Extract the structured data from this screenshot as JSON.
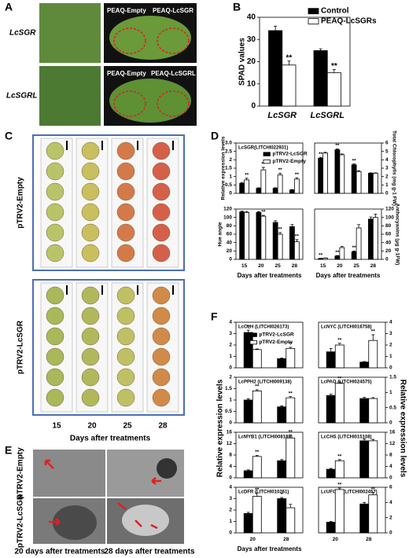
{
  "panel_labels": [
    "A",
    "B",
    "C",
    "D",
    "E",
    "F"
  ],
  "panel_A": {
    "rows": [
      "LcSGR",
      "LcSGRL"
    ],
    "leaf_labels": [
      [
        "PEAQ-Empty",
        "PEAQ-LcSGR"
      ],
      [
        "PEAQ-Empty",
        "PEAQ-LcSGRL"
      ]
    ]
  },
  "panel_C": {
    "groups": [
      "pTRV2-Empty",
      "pTRV2-LcSGR"
    ],
    "days": [
      "15",
      "20",
      "25",
      "28"
    ],
    "xlabel": "Days after treatments"
  },
  "panel_E": {
    "groups": [
      "pTRV2-Empty",
      "pTRV2-LcSGR"
    ],
    "columns": [
      "20 days after treatments",
      "28 days after treatments"
    ]
  },
  "panel_F": {
    "ylabel_left": "Relative expression levels",
    "ylabel_right": "Relative expression levels"
  },
  "chart_data": [
    {
      "type": "bar",
      "ylabel": "SPAD values",
      "categories": [
        "LcSGR",
        "LcSGRL"
      ],
      "ylim": [
        0,
        40
      ],
      "yticks": [
        0,
        10,
        20,
        30,
        40
      ],
      "yaxis_side": "left",
      "legend": "upper right",
      "series": [
        {
          "name": "Control",
          "color": "#000000",
          "values": [
            34,
            25
          ],
          "errors": [
            2,
            0.8
          ]
        },
        {
          "name": "PEAQ-LcSGRs",
          "color": "#ffffff",
          "values": [
            18.5,
            15
          ],
          "errors": [
            1.8,
            1.5
          ],
          "significance": [
            "**",
            "**"
          ]
        }
      ]
    },
    {
      "type": "bar",
      "title": "LcSGR(LITCHI022931)",
      "ylabel": "Relative expression levels",
      "ylim": [
        0,
        3
      ],
      "yticks": [
        0,
        0.5,
        1,
        1.5,
        2,
        2.5,
        {
          "value": 3,
          "label": "3.0"
        }
      ],
      "yaxis_side": "left",
      "legend": "upper right",
      "series": [
        {
          "name": "pTRV2-LcSGR",
          "color": "#000000",
          "values": [
            0.6,
            0.3,
            0.3,
            0.2
          ],
          "errors": [
            0.05,
            0.03,
            0.03,
            0.03
          ]
        },
        {
          "name": "pTRV2-Empty",
          "color": "#ffffff",
          "values": [
            0.8,
            1.4,
            1.1,
            0.85
          ],
          "errors": [
            0.1,
            0.15,
            0.1,
            0.08
          ],
          "significance": [
            "**",
            "**",
            "**",
            "**"
          ]
        }
      ]
    },
    {
      "type": "bar",
      "ylabel": "Total Chlorophylls (mg g-1 FW)",
      "ylim": [
        0,
        6
      ],
      "yticks": [
        0,
        1,
        2,
        3,
        4,
        5,
        6
      ],
      "yaxis_side": "right",
      "series": [
        {
          "color": "#000000",
          "values": [
            4.2,
            5.2,
            3.4,
            2.4
          ],
          "errors": [
            0.1,
            0.1,
            0.1,
            0.05
          ],
          "significance": [
            "**",
            "**",
            "**",
            null
          ]
        },
        {
          "color": "#ffffff",
          "values": [
            4.8,
            4.6,
            2.6,
            2.4
          ],
          "errors": [
            0.1,
            0.1,
            0.1,
            0.05
          ]
        }
      ]
    },
    {
      "type": "bar",
      "ylabel": "Hue angle",
      "categories": [
        "15",
        "20",
        "25",
        "28"
      ],
      "xlabel": "Days after treatments",
      "ylim": [
        0,
        120
      ],
      "yticks": [
        0,
        20,
        40,
        60,
        80,
        100,
        120
      ],
      "yaxis_side": "left",
      "series": [
        {
          "color": "#000000",
          "values": [
            113,
            112,
            88,
            78
          ],
          "errors": [
            2,
            2,
            4,
            5
          ]
        },
        {
          "color": "#ffffff",
          "values": [
            112,
            103,
            60,
            42
          ],
          "errors": [
            2,
            2,
            4,
            5
          ],
          "significance": [
            null,
            "**",
            "**",
            "**"
          ]
        }
      ]
    },
    {
      "type": "bar",
      "ylabel": "Anthocyanins (μg g-1FW)",
      "categories": [
        "15",
        "20",
        "25",
        "28"
      ],
      "xlabel": "Days after treatments",
      "ylim": [
        0,
        120
      ],
      "yticks": [
        0,
        20,
        40,
        60,
        80,
        100,
        120
      ],
      "yaxis_side": "right",
      "series": [
        {
          "color": "#000000",
          "values": [
            2,
            8,
            18,
            96
          ],
          "errors": [
            0.5,
            1,
            2,
            5
          ],
          "significance": [
            "**",
            "**",
            "**",
            null
          ]
        },
        {
          "color": "#ffffff",
          "values": [
            3,
            28,
            75,
            100
          ],
          "errors": [
            0.5,
            3,
            8,
            8
          ]
        }
      ]
    },
    {
      "type": "bar",
      "title": "LcCLH (LITCHI026173)",
      "ylim": [
        0,
        4
      ],
      "yticks": [
        0,
        1,
        2,
        3,
        4
      ],
      "yaxis_side": "left",
      "legend": "upper right",
      "series": [
        {
          "name": "pTRV2-LcSGR",
          "color": "#000000",
          "values": [
            3.1,
            0.8
          ],
          "errors": [
            0.2,
            0.05
          ],
          "significance": [
            "**",
            null
          ]
        },
        {
          "name": "pTRV2-Empty",
          "color": "#ffffff",
          "values": [
            1.6,
            1.7
          ],
          "errors": [
            0.05,
            0.1
          ],
          "significance": [
            null,
            "**"
          ]
        }
      ]
    },
    {
      "type": "bar",
      "title": "LcNYC (LITCHI016758)",
      "ylim": [
        0,
        4
      ],
      "yticks": [
        0,
        1,
        2,
        3,
        4
      ],
      "yaxis_side": "right",
      "series": [
        {
          "color": "#000000",
          "values": [
            1.4,
            0.5
          ],
          "errors": [
            0.3,
            0.05
          ]
        },
        {
          "color": "#ffffff",
          "values": [
            2.0,
            2.4
          ],
          "errors": [
            0.15,
            0.5
          ],
          "significance": [
            "**",
            "**"
          ]
        }
      ]
    },
    {
      "type": "bar",
      "title": "LcPPH2 (LITCHI009138)",
      "ylim": [
        0,
        2
      ],
      "yticks": [
        0,
        0.5,
        1,
        1.5,
        2
      ],
      "yaxis_side": "left",
      "series": [
        {
          "color": "#000000",
          "values": [
            1.0,
            0.7
          ],
          "errors": [
            0.05,
            0.04
          ]
        },
        {
          "color": "#ffffff",
          "values": [
            1.4,
            1.1
          ],
          "errors": [
            0.05,
            0.05
          ],
          "significance": [
            "**",
            "**"
          ]
        }
      ]
    },
    {
      "type": "bar",
      "title": "LcPAO (LITCHI024575)",
      "ylim": [
        0,
        1.5
      ],
      "yticks": [
        0,
        0.5,
        1,
        1.5
      ],
      "yaxis_side": "right",
      "series": [
        {
          "color": "#000000",
          "values": [
            0.9,
            0.8
          ],
          "errors": [
            0.04,
            0.04
          ]
        },
        {
          "color": "#ffffff",
          "values": [
            1.3,
            0.8
          ],
          "errors": [
            0.05,
            0.03
          ],
          "significance": [
            "**",
            null
          ]
        }
      ]
    },
    {
      "type": "bar",
      "title": "LcMYB1 (LITCHI008189)",
      "ylim": [
        0,
        16
      ],
      "yticks": [
        0,
        4,
        8,
        12,
        16
      ],
      "yaxis_side": "left",
      "series": [
        {
          "color": "#000000",
          "values": [
            2.5,
            6
          ],
          "errors": [
            0.3,
            0.4
          ]
        },
        {
          "color": "#ffffff",
          "values": [
            7.5,
            14
          ],
          "errors": [
            0.4,
            1
          ],
          "significance": [
            "**",
            "**"
          ]
        }
      ]
    },
    {
      "type": "bar",
      "title": "LcCHS (LITCHI015108)",
      "ylim": [
        0,
        16
      ],
      "yticks": [
        0,
        4,
        8,
        12,
        16
      ],
      "yaxis_side": "right",
      "series": [
        {
          "color": "#000000",
          "values": [
            3,
            13
          ],
          "errors": [
            0.3,
            0.6
          ]
        },
        {
          "color": "#ffffff",
          "values": [
            6,
            13
          ],
          "errors": [
            0.4,
            0.5
          ],
          "significance": [
            "**",
            null
          ]
        }
      ]
    },
    {
      "type": "bar",
      "title": "LcDFR (LITCHI010261)",
      "categories": [
        "20",
        "28"
      ],
      "xlabel": "Days after treatments",
      "ylim": [
        0,
        4
      ],
      "yticks": [
        0,
        1,
        2,
        3,
        4
      ],
      "yaxis_side": "left",
      "series": [
        {
          "color": "#000000",
          "values": [
            1.7,
            3.0
          ],
          "errors": [
            0.1,
            0.1
          ],
          "significance": [
            null,
            "*"
          ]
        },
        {
          "color": "#ffffff",
          "values": [
            3.2,
            2.2
          ],
          "errors": [
            0.3,
            0.3
          ],
          "significance": [
            "**",
            null
          ]
        }
      ]
    },
    {
      "type": "bar",
      "title": "LcUFGT1 (LITCHI002457)",
      "categories": [
        "20",
        "28"
      ],
      "ylim": [
        0,
        6
      ],
      "yticks": [
        0,
        2,
        4,
        6
      ],
      "yaxis_side": "right",
      "series": [
        {
          "color": "#000000",
          "values": [
            1.4,
            3.8
          ],
          "errors": [
            0.1,
            0.2
          ]
        },
        {
          "color": "#ffffff",
          "values": [
            5.7,
            5.0
          ],
          "errors": [
            0.2,
            0.3
          ],
          "significance": [
            "**",
            "**"
          ]
        }
      ]
    }
  ]
}
